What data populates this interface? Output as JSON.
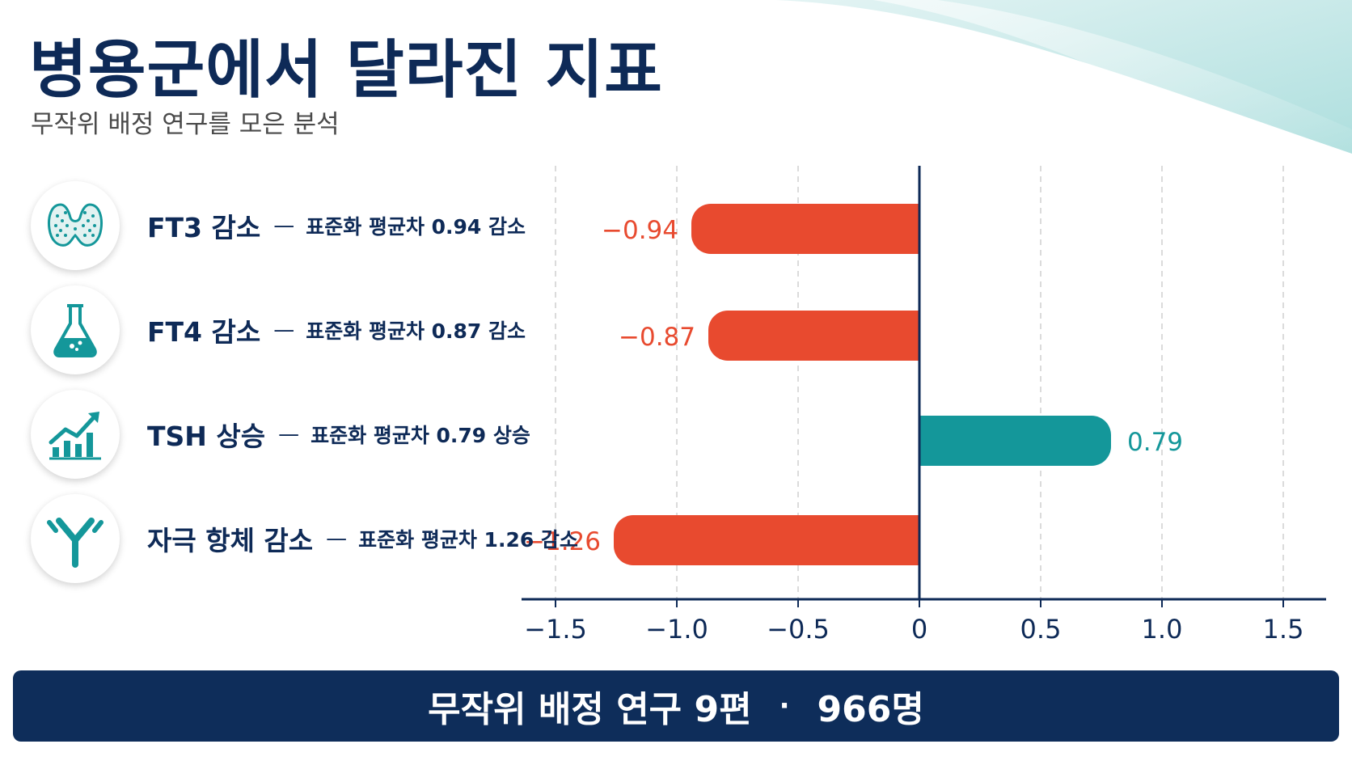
{
  "title": "병용군에서 달라진 지표",
  "subtitle": "무작위 배정 연구를 모은 분석",
  "metrics": [
    {
      "name": "FT3 감소",
      "detail": "표준화 평균차 0.94 감소",
      "icon": "thyroid-icon"
    },
    {
      "name": "FT4 감소",
      "detail": "표준화 평균차 0.87 감소",
      "icon": "flask-icon"
    },
    {
      "name": "TSH 상승",
      "detail": "표준화 평균차 0.79 상승",
      "icon": "rising-chart-icon"
    },
    {
      "name": "자극 항체 감소",
      "detail": "표준화 평균차 1.26 감소",
      "icon": "antibody-icon"
    }
  ],
  "dash": "—",
  "chart_data": {
    "type": "bar",
    "orientation": "horizontal",
    "categories": [
      "FT3 감소",
      "FT4 감소",
      "TSH 상승",
      "자극 항체 감소"
    ],
    "values": [
      -0.94,
      -0.87,
      0.79,
      -1.26
    ],
    "value_labels": [
      "−0.94",
      "−0.87",
      "0.79",
      "−1.26"
    ],
    "xlim": [
      -1.75,
      1.65
    ],
    "xticks": [
      -1.5,
      -1.0,
      -0.5,
      0,
      0.5,
      1.0,
      1.5
    ],
    "xtick_labels": [
      "−1.5",
      "−1.0",
      "−0.5",
      "0",
      "0.5",
      "1.0",
      "1.5"
    ],
    "grid": true,
    "colors": {
      "negative": "#e84a2f",
      "positive": "#14979a",
      "axis": "#0e2a57",
      "grid": "#cfcfcf"
    }
  },
  "footer": {
    "studies": "무작위 배정 연구 9편",
    "separator": "·",
    "participants": "966명"
  }
}
